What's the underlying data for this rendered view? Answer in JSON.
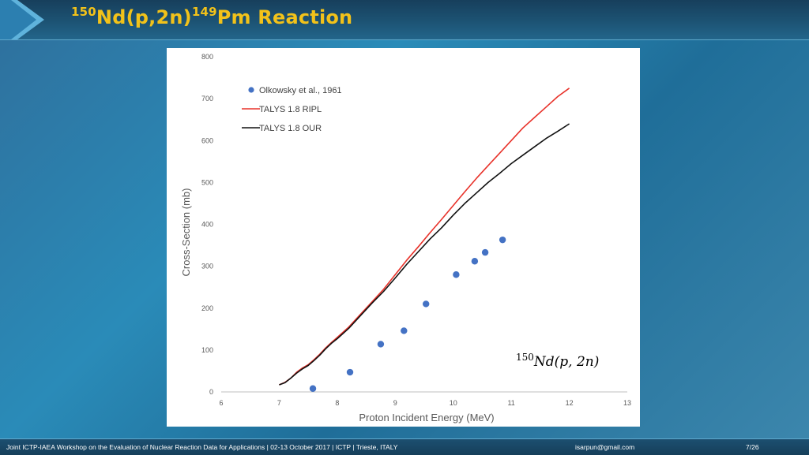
{
  "slide": {
    "title_pre": "150",
    "title_main1": "Nd(p,2n)",
    "title_sup2": "149",
    "title_main2": "Pm Reaction",
    "footer_text": "Joint ICTP-IAEA Workshop on the Evaluation of Nuclear Reaction Data for Applications |   02-13 October 2017    |   ICTP    |   Trieste, ITALY",
    "footer_email": "isarpun@gmail.com",
    "footer_page": "7/26",
    "accent_color": "#f2c21a"
  },
  "chart_data": {
    "type": "line",
    "title": "",
    "xlabel": "Proton Incident Energy (MeV)",
    "ylabel": "Cross-Section (mb)",
    "xlim": [
      6,
      13
    ],
    "ylim": [
      0,
      800
    ],
    "xticks": [
      6,
      7,
      8,
      9,
      10,
      11,
      12,
      13
    ],
    "yticks": [
      0,
      100,
      200,
      300,
      400,
      500,
      600,
      700,
      800
    ],
    "grid": false,
    "legend_position": "top-left",
    "annotation": {
      "sup": "150",
      "text": "Nd(p, 2n)"
    },
    "series": [
      {
        "name": "Olkowsky et al., 1961",
        "kind": "scatter",
        "color": "#4472c4",
        "x": [
          7.58,
          8.22,
          8.75,
          9.15,
          9.53,
          10.05,
          10.37,
          10.55,
          10.85
        ],
        "y": [
          8,
          47,
          114,
          146,
          210,
          280,
          312,
          333,
          363
        ]
      },
      {
        "name": "TALYS 1.8 RIPL",
        "kind": "line",
        "color": "#e8322a",
        "x": [
          7.0,
          7.1,
          7.2,
          7.3,
          7.4,
          7.5,
          7.6,
          7.7,
          7.8,
          7.9,
          8.0,
          8.2,
          8.4,
          8.6,
          8.8,
          9.0,
          9.2,
          9.4,
          9.6,
          9.8,
          10.0,
          10.2,
          10.4,
          10.6,
          10.8,
          11.0,
          11.2,
          11.4,
          11.6,
          11.8,
          12.0
        ],
        "y": [
          17,
          23,
          33,
          47,
          57,
          65,
          77,
          90,
          105,
          118,
          130,
          155,
          185,
          215,
          245,
          280,
          315,
          347,
          380,
          412,
          445,
          478,
          510,
          540,
          570,
          600,
          630,
          655,
          680,
          705,
          725
        ]
      },
      {
        "name": "TALYS 1.8 OUR",
        "kind": "line",
        "color": "#111111",
        "x": [
          7.0,
          7.1,
          7.2,
          7.3,
          7.4,
          7.5,
          7.6,
          7.7,
          7.8,
          7.9,
          8.0,
          8.2,
          8.4,
          8.6,
          8.8,
          9.0,
          9.2,
          9.4,
          9.6,
          9.8,
          10.0,
          10.2,
          10.4,
          10.6,
          10.8,
          11.0,
          11.2,
          11.4,
          11.6,
          11.8,
          12.0
        ],
        "y": [
          17,
          22,
          33,
          45,
          55,
          63,
          75,
          88,
          103,
          116,
          127,
          152,
          182,
          212,
          240,
          272,
          305,
          335,
          365,
          392,
          422,
          450,
          475,
          500,
          522,
          545,
          565,
          585,
          605,
          622,
          640
        ]
      }
    ]
  }
}
